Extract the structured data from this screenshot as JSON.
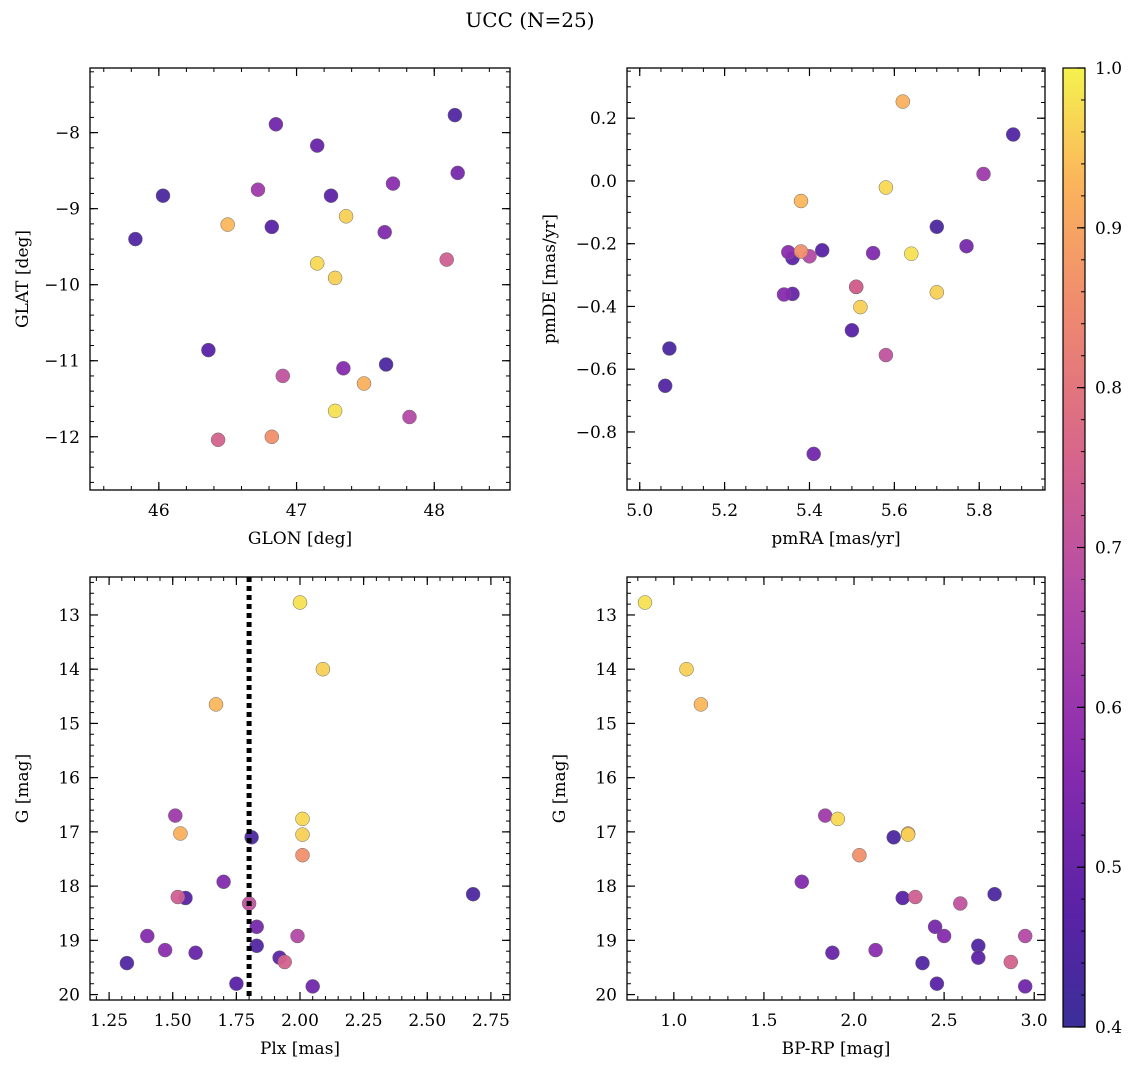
{
  "figure": {
    "title": "UCC (N=25)"
  },
  "chart_data": {
    "type": "scatter",
    "title": "UCC (N=25)",
    "color_variable": "membership probability (colorbar)",
    "colormap": "plasma",
    "colorbar": {
      "min": 0.4,
      "max": 1.0,
      "ticks": [
        "0.4",
        "0.5",
        "0.6",
        "0.7",
        "0.8",
        "0.9",
        "1.0"
      ]
    },
    "stars": [
      {
        "glon": 46.5,
        "glat": -9.21,
        "pmra": 5.38,
        "pmde": -0.064,
        "plx": 1.67,
        "bprp": 1.15,
        "g": 14.65,
        "p": 0.93
      },
      {
        "glon": 45.83,
        "glat": -9.4,
        "pmra": 5.06,
        "pmde": -0.653,
        "plx": 1.32,
        "bprp": 2.38,
        "g": 19.42,
        "p": 0.45
      },
      {
        "glon": 46.03,
        "glat": -8.83,
        "pmra": 5.07,
        "pmde": -0.534,
        "plx": 2.68,
        "bprp": 2.78,
        "g": 18.15,
        "p": 0.44
      },
      {
        "glon": 46.36,
        "glat": -10.86,
        "pmra": 5.5,
        "pmde": -0.476,
        "plx": 1.75,
        "bprp": 2.46,
        "g": 19.8,
        "p": 0.47
      },
      {
        "glon": 46.43,
        "glat": -12.04,
        "pmra": 5.51,
        "pmde": -0.337,
        "plx": 1.94,
        "bprp": 2.87,
        "g": 19.4,
        "p": 0.75
      },
      {
        "glon": 46.72,
        "glat": -8.75,
        "pmra": 5.81,
        "pmde": 0.022,
        "plx": 1.51,
        "bprp": 1.84,
        "g": 16.7,
        "p": 0.62
      },
      {
        "glon": 46.82,
        "glat": -9.24,
        "pmra": 5.43,
        "pmde": -0.221,
        "plx": 1.55,
        "bprp": 2.27,
        "g": 18.22,
        "p": 0.47
      },
      {
        "glon": 46.82,
        "glat": -12.0,
        "pmra": 5.38,
        "pmde": -0.225,
        "plx": 2.01,
        "bprp": 2.03,
        "g": 17.43,
        "p": 0.86
      },
      {
        "glon": 46.85,
        "glat": -7.89,
        "pmra": 5.41,
        "pmde": -0.87,
        "plx": 2.05,
        "bprp": 2.95,
        "g": 19.85,
        "p": 0.52
      },
      {
        "glon": 46.9,
        "glat": -11.2,
        "pmra": 5.58,
        "pmde": -0.555,
        "plx": 1.8,
        "bprp": 2.59,
        "g": 18.32,
        "p": 0.7
      },
      {
        "glon": 47.15,
        "glat": -9.72,
        "pmra": 5.58,
        "pmde": -0.021,
        "plx": 2.01,
        "bprp": 1.91,
        "g": 16.76,
        "p": 0.97
      },
      {
        "glon": 47.15,
        "glat": -8.17,
        "pmra": 5.36,
        "pmde": -0.36,
        "plx": 1.59,
        "bprp": 1.88,
        "g": 19.23,
        "p": 0.5
      },
      {
        "glon": 47.25,
        "glat": -8.83,
        "pmra": 5.36,
        "pmde": -0.246,
        "plx": 1.92,
        "bprp": 2.69,
        "g": 19.32,
        "p": 0.48
      },
      {
        "glon": 47.28,
        "glat": -9.91,
        "pmra": 5.52,
        "pmde": -0.402,
        "plx": 2.09,
        "bprp": 1.07,
        "g": 14.0,
        "p": 0.96
      },
      {
        "glon": 47.28,
        "glat": -11.66,
        "pmra": 5.64,
        "pmde": -0.232,
        "plx": 2.0,
        "bprp": 0.84,
        "g": 12.77,
        "p": 0.98
      },
      {
        "glon": 47.34,
        "glat": -11.1,
        "pmra": 5.34,
        "pmde": -0.362,
        "plx": 1.4,
        "bprp": 2.5,
        "g": 18.92,
        "p": 0.56
      },
      {
        "glon": 47.49,
        "glat": -11.3,
        "pmra": 5.62,
        "pmde": 0.253,
        "plx": 1.53,
        "bprp": 2.3,
        "g": 17.03,
        "p": 0.92
      },
      {
        "glon": 47.64,
        "glat": -9.31,
        "pmra": 5.55,
        "pmde": -0.23,
        "plx": 1.7,
        "bprp": 1.71,
        "g": 17.92,
        "p": 0.55
      },
      {
        "glon": 47.65,
        "glat": -11.05,
        "pmra": 5.7,
        "pmde": -0.146,
        "plx": 1.81,
        "bprp": 2.22,
        "g": 17.1,
        "p": 0.44
      },
      {
        "glon": 47.7,
        "glat": -8.67,
        "pmra": 5.35,
        "pmde": -0.227,
        "plx": 1.47,
        "bprp": 2.12,
        "g": 19.18,
        "p": 0.57
      },
      {
        "glon": 47.82,
        "glat": -11.74,
        "pmra": 5.4,
        "pmde": -0.24,
        "plx": 1.99,
        "bprp": 2.95,
        "g": 18.92,
        "p": 0.67
      },
      {
        "glon": 48.09,
        "glat": -9.67,
        "pmra": 5.51,
        "pmde": -0.338,
        "plx": 1.52,
        "bprp": 2.34,
        "g": 18.2,
        "p": 0.74
      },
      {
        "glon": 48.15,
        "glat": -7.77,
        "pmra": 5.88,
        "pmde": 0.148,
        "plx": 1.83,
        "bprp": 2.69,
        "g": 19.1,
        "p": 0.45
      },
      {
        "glon": 48.17,
        "glat": -8.53,
        "pmra": 5.77,
        "pmde": -0.208,
        "plx": 1.83,
        "bprp": 2.45,
        "g": 18.75,
        "p": 0.53
      },
      {
        "glon": 47.36,
        "glat": -9.1,
        "pmra": 5.7,
        "pmde": -0.355,
        "plx": 2.01,
        "bprp": 2.3,
        "g": 17.05,
        "p": 0.96
      }
    ],
    "panels": [
      {
        "id": "glon-glat",
        "x": "glon",
        "y": "glat",
        "xlabel": "GLON [deg]",
        "ylabel": "GLAT [deg]",
        "xlim": [
          45.5,
          48.55
        ],
        "ylim": [
          -12.7,
          -7.15
        ],
        "yinvert": false,
        "xticks": [
          46,
          47,
          48
        ],
        "xtick_labels": [
          "46",
          "47",
          "48"
        ],
        "xminor": 0.2,
        "yticks": [
          -12,
          -11,
          -10,
          -9,
          -8
        ],
        "ytick_labels": [
          "−12",
          "−11",
          "−10",
          "−9",
          "−8"
        ],
        "yminor": 0.2
      },
      {
        "id": "pm",
        "x": "pmra",
        "y": "pmde",
        "xlabel": "pmRA [mas/yr]",
        "ylabel": "pmDE [mas/yr]",
        "xlim": [
          4.97,
          5.955
        ],
        "ylim": [
          -0.985,
          0.36
        ],
        "yinvert": false,
        "xticks": [
          5.0,
          5.2,
          5.4,
          5.6,
          5.8
        ],
        "xtick_labels": [
          "5.0",
          "5.2",
          "5.4",
          "5.6",
          "5.8"
        ],
        "xminor": 0.05,
        "yticks": [
          -0.8,
          -0.6,
          -0.4,
          -0.2,
          0.0,
          0.2
        ],
        "ytick_labels": [
          "−0.8",
          "−0.6",
          "−0.4",
          "−0.2",
          "0.0",
          "0.2"
        ],
        "yminor": 0.05
      },
      {
        "id": "plx-g",
        "x": "plx",
        "y": "g",
        "xlabel": "Plx [mas]",
        "ylabel": "G [mag]",
        "xlim": [
          1.175,
          2.825
        ],
        "ylim": [
          12.3,
          20.1
        ],
        "yinvert": true,
        "xticks": [
          1.25,
          1.5,
          1.75,
          2.0,
          2.25,
          2.5,
          2.75
        ],
        "xtick_labels": [
          "1.25",
          "1.50",
          "1.75",
          "2.00",
          "2.25",
          "2.50",
          "2.75"
        ],
        "xminor": 0.05,
        "yticks": [
          13,
          14,
          15,
          16,
          17,
          18,
          19,
          20
        ],
        "ytick_labels": [
          "13",
          "14",
          "15",
          "16",
          "17",
          "18",
          "19",
          "20"
        ],
        "yminor": 0.2,
        "vline": 1.8
      },
      {
        "id": "bprp-g",
        "x": "bprp",
        "y": "g",
        "xlabel": "BP-RP [mag]",
        "ylabel": "G [mag]",
        "xlim": [
          0.74,
          3.06
        ],
        "ylim": [
          12.3,
          20.1
        ],
        "yinvert": true,
        "xticks": [
          1.0,
          1.5,
          2.0,
          2.5,
          3.0
        ],
        "xtick_labels": [
          "1.0",
          "1.5",
          "2.0",
          "2.5",
          "3.0"
        ],
        "xminor": 0.1,
        "yticks": [
          13,
          14,
          15,
          16,
          17,
          18,
          19,
          20
        ],
        "ytick_labels": [
          "13",
          "14",
          "15",
          "16",
          "17",
          "18",
          "19",
          "20"
        ],
        "yminor": 0.2
      }
    ]
  }
}
